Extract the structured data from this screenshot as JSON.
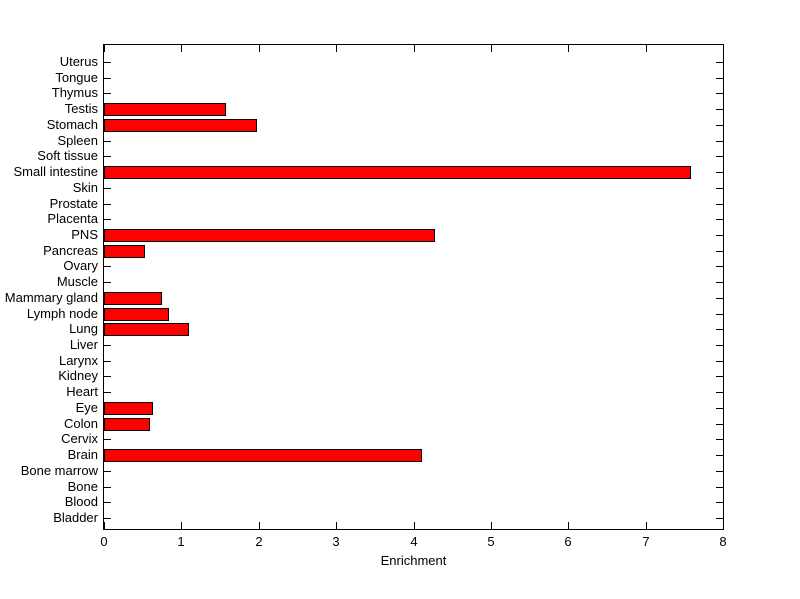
{
  "chart_data": {
    "type": "bar",
    "orientation": "horizontal",
    "title": "",
    "xlabel": "Enrichment",
    "ylabel": "",
    "xlim": [
      0,
      8
    ],
    "xticks": [
      0,
      1,
      2,
      3,
      4,
      5,
      6,
      7,
      8
    ],
    "grid": false,
    "legend": null,
    "bar_color": "#ff0000",
    "bar_edge_color": "#000000",
    "background_color": "#ffffff",
    "axis_color": "#000000",
    "categories": [
      "Uterus",
      "Tongue",
      "Thymus",
      "Testis",
      "Stomach",
      "Spleen",
      "Soft tissue",
      "Small intestine",
      "Skin",
      "Prostate",
      "Placenta",
      "PNS",
      "Pancreas",
      "Ovary",
      "Muscle",
      "Mammary gland",
      "Lymph node",
      "Lung",
      "Liver",
      "Larynx",
      "Kidney",
      "Heart",
      "Eye",
      "Colon",
      "Cervix",
      "Brain",
      "Bone marrow",
      "Bone",
      "Blood",
      "Bladder"
    ],
    "values": [
      0,
      0,
      0,
      1.58,
      1.98,
      0,
      0,
      7.58,
      0,
      0,
      0,
      4.28,
      0.53,
      0,
      0,
      0.75,
      0.84,
      1.1,
      0,
      0,
      0,
      0,
      0.63,
      0.59,
      0,
      4.11,
      0,
      0,
      0,
      0
    ]
  }
}
